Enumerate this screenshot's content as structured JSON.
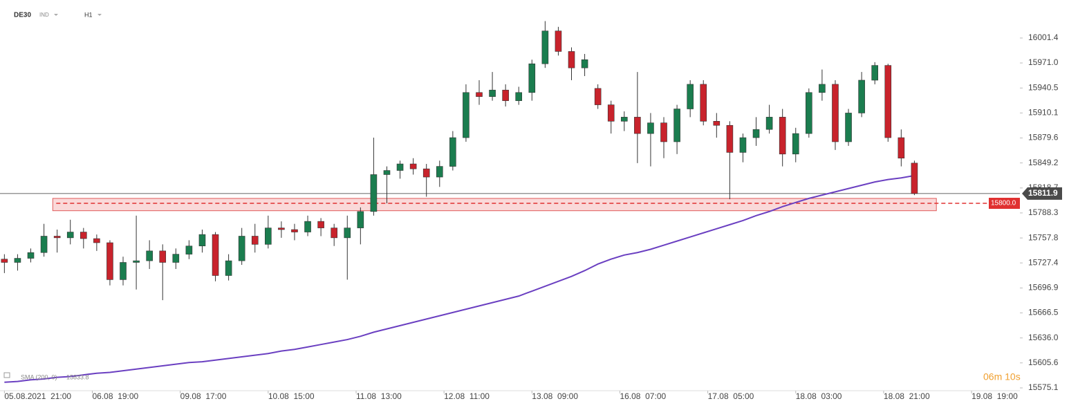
{
  "chart_data": {
    "type": "candlestick",
    "symbol": "DE30",
    "market": "IND",
    "interval": "H1",
    "up_color": "#1b7d4f",
    "down_color": "#c8232c",
    "x": [
      0,
      3,
      6,
      9,
      12,
      15,
      18,
      21,
      24,
      27,
      30,
      33,
      36,
      39,
      42,
      45,
      48,
      51,
      54,
      57,
      60,
      63,
      66,
      69,
      72,
      75,
      78,
      81,
      84,
      87,
      90,
      93,
      96,
      99,
      102,
      105,
      108,
      111,
      114,
      117,
      120,
      123,
      126,
      129,
      132,
      135,
      138,
      141,
      144,
      147,
      150,
      153,
      156,
      159,
      162,
      165,
      168,
      171,
      174,
      177,
      180,
      183,
      186,
      189,
      192,
      195,
      198,
      201,
      204,
      207
    ],
    "open": [
      15732,
      15728,
      15733,
      15740,
      15760,
      15758,
      15765,
      15757,
      15752,
      15707,
      15728,
      15730,
      15742,
      15728,
      15738,
      15748,
      15762,
      15712,
      15730,
      15760,
      15750,
      15770,
      15768,
      15765,
      15778,
      15770,
      15758,
      15770,
      15790,
      15835,
      15840,
      15848,
      15842,
      15832,
      15845,
      15880,
      15935,
      15930,
      15938,
      15925,
      15935,
      15970,
      16010,
      15985,
      15965,
      15940,
      15920,
      15900,
      15905,
      15885,
      15898,
      15875,
      15915,
      15945,
      15900,
      15895,
      15862,
      15880,
      15890,
      15905,
      15860,
      15885,
      15935,
      15945,
      15875,
      15910,
      15950,
      15968,
      15880,
      15849
    ],
    "high": [
      15738,
      15738,
      15745,
      15775,
      15768,
      15780,
      15770,
      15762,
      15755,
      15735,
      15785,
      15755,
      15750,
      15745,
      15755,
      15768,
      15765,
      15738,
      15770,
      15775,
      15785,
      15778,
      15775,
      15785,
      15782,
      15775,
      15785,
      15795,
      15880,
      15845,
      15852,
      15855,
      15848,
      15852,
      15888,
      15945,
      15950,
      15960,
      15945,
      15942,
      15975,
      16022,
      16015,
      15990,
      15982,
      15945,
      15925,
      15912,
      15960,
      15910,
      15905,
      15920,
      15950,
      15950,
      15910,
      15900,
      15885,
      15905,
      15920,
      15915,
      15892,
      15940,
      15963,
      15950,
      15915,
      15960,
      15972,
      15970,
      15890,
      15852
    ],
    "low": [
      15715,
      15718,
      15728,
      15735,
      15740,
      15750,
      15745,
      15742,
      15700,
      15700,
      15695,
      15720,
      15682,
      15720,
      15732,
      15740,
      15705,
      15706,
      15725,
      15740,
      15745,
      15758,
      15755,
      15760,
      15760,
      15748,
      15707,
      15750,
      15785,
      15800,
      15830,
      15835,
      15808,
      15820,
      15840,
      15875,
      15920,
      15925,
      15918,
      15920,
      15925,
      15965,
      15980,
      15950,
      15955,
      15915,
      15885,
      15888,
      15849,
      15845,
      15855,
      15860,
      15905,
      15895,
      15880,
      15805,
      15850,
      15870,
      15885,
      15845,
      15850,
      15880,
      15925,
      15865,
      15870,
      15905,
      15945,
      15875,
      15845,
      15810
    ],
    "close": [
      15728,
      15733,
      15740,
      15760,
      15758,
      15765,
      15757,
      15752,
      15707,
      15728,
      15730,
      15742,
      15728,
      15738,
      15748,
      15762,
      15712,
      15730,
      15760,
      15750,
      15770,
      15768,
      15765,
      15778,
      15770,
      15758,
      15770,
      15790,
      15835,
      15840,
      15848,
      15842,
      15832,
      15845,
      15880,
      15935,
      15930,
      15938,
      15925,
      15935,
      15970,
      16010,
      15985,
      15965,
      15975,
      15920,
      15900,
      15905,
      15885,
      15898,
      15875,
      15915,
      15945,
      15900,
      15895,
      15862,
      15880,
      15890,
      15905,
      15860,
      15885,
      15935,
      15945,
      15875,
      15910,
      15950,
      15968,
      15880,
      15855,
      15811.9
    ],
    "sma": {
      "name": "SMA (200, 0)",
      "color": "#6a3fc1",
      "values": [
        15582,
        15583,
        15585,
        15586,
        15588,
        15589,
        15591,
        15593,
        15594,
        15596,
        15598,
        15600,
        15602,
        15604,
        15606,
        15607,
        15609,
        15611,
        15613,
        15615,
        15617,
        15620,
        15622,
        15625,
        15628,
        15631,
        15634,
        15638,
        15643,
        15647,
        15651,
        15655,
        15659,
        15663,
        15667,
        15671,
        15675,
        15679,
        15683,
        15687,
        15693,
        15699,
        15705,
        15711,
        15718,
        15726,
        15732,
        15737,
        15740,
        15744,
        15749,
        15754,
        15759,
        15764,
        15769,
        15774,
        15779,
        15785,
        15790,
        15796,
        15801,
        15806,
        15810,
        15814,
        15818,
        15822,
        15826,
        15829,
        15831,
        15833.8
      ]
    },
    "last_price": 15811.9,
    "level": {
      "value": 15800,
      "label": "15800.0"
    },
    "zone": {
      "low": 15791,
      "high": 15806,
      "from": 11,
      "to": 212
    },
    "countdown": "06m 10s",
    "xlim": [
      -1,
      231
    ],
    "ylim": [
      15571.7,
      16047.7
    ],
    "yticks": [
      16001.4,
      {
        "value": 15971,
        "label": "15971.0"
      },
      15940.5,
      15910.1,
      15879.6,
      15849.2,
      15818.7,
      15788.3,
      15757.8,
      15727.4,
      15696.9,
      15666.5,
      {
        "value": 15636,
        "label": "15636.0"
      },
      15605.6,
      15575.1
    ],
    "xticks": [
      {
        "value": 0,
        "label": "05.08.2021  21:00"
      },
      {
        "value": 20,
        "label": "06.08  19:00"
      },
      {
        "value": 40,
        "label": "09.08  17:00"
      },
      {
        "value": 60,
        "label": "10.08  15:00"
      },
      {
        "value": 80,
        "label": "11.08  13:00"
      },
      {
        "value": 100,
        "label": "12.08  11:00"
      },
      {
        "value": 120,
        "label": "13.08  09:00"
      },
      {
        "value": 140,
        "label": "16.08  07:00"
      },
      {
        "value": 160,
        "label": "17.08  05:00"
      },
      {
        "value": 180,
        "label": "18.08  03:00"
      },
      {
        "value": 200,
        "label": "18.08  21:00"
      },
      {
        "value": 220,
        "label": "19.08  19:00"
      }
    ]
  }
}
